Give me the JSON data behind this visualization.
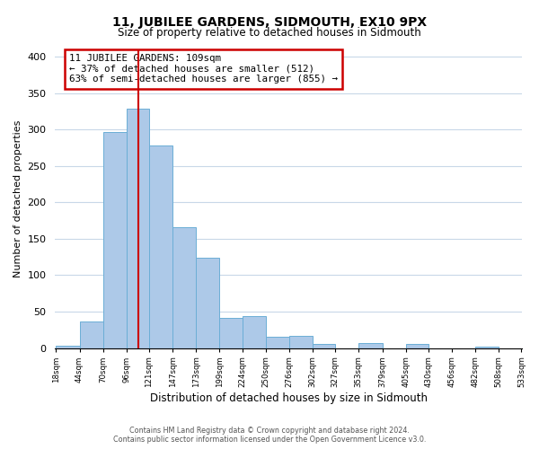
{
  "title": "11, JUBILEE GARDENS, SIDMOUTH, EX10 9PX",
  "subtitle": "Size of property relative to detached houses in Sidmouth",
  "xlabel": "Distribution of detached houses by size in Sidmouth",
  "ylabel": "Number of detached properties",
  "footer_lines": [
    "Contains HM Land Registry data © Crown copyright and database right 2024.",
    "Contains public sector information licensed under the Open Government Licence v3.0."
  ],
  "bar_left_edges": [
    18,
    44,
    70,
    96,
    121,
    147,
    173,
    199,
    224,
    250,
    276,
    302,
    327,
    353,
    379,
    405,
    430,
    456,
    482,
    508
  ],
  "bar_widths": [
    26,
    26,
    26,
    25,
    26,
    26,
    26,
    25,
    26,
    26,
    26,
    25,
    26,
    26,
    26,
    25,
    26,
    26,
    26,
    25
  ],
  "bar_heights": [
    3,
    36,
    297,
    329,
    278,
    166,
    124,
    41,
    44,
    16,
    17,
    5,
    0,
    7,
    0,
    6,
    0,
    0,
    2,
    0
  ],
  "tick_labels": [
    "18sqm",
    "44sqm",
    "70sqm",
    "96sqm",
    "121sqm",
    "147sqm",
    "173sqm",
    "199sqm",
    "224sqm",
    "250sqm",
    "276sqm",
    "302sqm",
    "327sqm",
    "353sqm",
    "379sqm",
    "405sqm",
    "430sqm",
    "456sqm",
    "482sqm",
    "508sqm",
    "533sqm"
  ],
  "bar_color": "#adc9e8",
  "bar_edge_color": "#6baed6",
  "vline_x": 109,
  "vline_color": "#cc0000",
  "annotation_box_text": "11 JUBILEE GARDENS: 109sqm\n← 37% of detached houses are smaller (512)\n63% of semi-detached houses are larger (855) →",
  "annotation_box_color": "#cc0000",
  "annotation_box_fill": "#ffffff",
  "ylim": [
    0,
    410
  ],
  "yticks": [
    0,
    50,
    100,
    150,
    200,
    250,
    300,
    350,
    400
  ],
  "background_color": "#ffffff",
  "grid_color": "#c8d8e8"
}
